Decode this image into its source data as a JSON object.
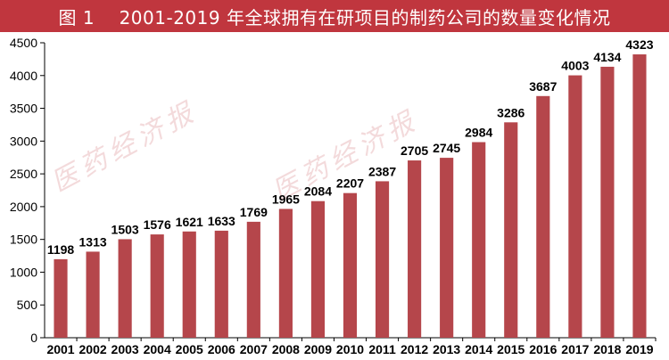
{
  "header": {
    "figure_number": "图 1",
    "title": "2001-2019 年全球拥有在研项目的制药公司的数量变化情况"
  },
  "watermark_text": "医药经济报",
  "colors": {
    "bar": "#b5464b",
    "title_bg": "#c0363e"
  },
  "chart_data": {
    "type": "bar",
    "title": "2001-2019 年全球拥有在研项目的制药公司的数量变化情况",
    "categories": [
      "2001",
      "2002",
      "2003",
      "2004",
      "2005",
      "2006",
      "2007",
      "2008",
      "2009",
      "2010",
      "2011",
      "2012",
      "2013",
      "2014",
      "2015",
      "2016",
      "2017",
      "2018",
      "2019"
    ],
    "values": [
      1198,
      1313,
      1503,
      1576,
      1621,
      1633,
      1769,
      1965,
      2084,
      2207,
      2387,
      2705,
      2745,
      2984,
      3286,
      3687,
      4003,
      4134,
      4323
    ],
    "ylim": [
      0,
      4500
    ],
    "yticks": [
      0,
      500,
      1000,
      1500,
      2000,
      2500,
      3000,
      3500,
      4000,
      4500
    ],
    "xlabel": "",
    "ylabel": "",
    "grid": false,
    "legend": "none"
  }
}
